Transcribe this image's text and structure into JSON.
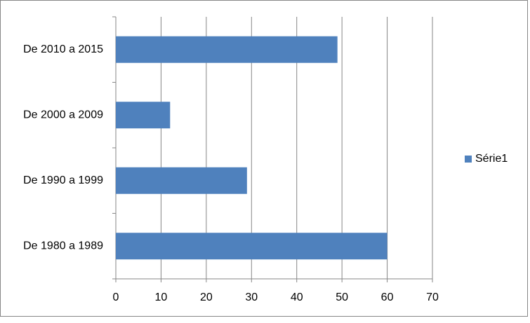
{
  "chart_data": {
    "type": "bar",
    "orientation": "horizontal",
    "categories": [
      "De 1980 a 1989",
      "De 1990 a 1999",
      "De 2000 a 2009",
      "De 2010 a 2015"
    ],
    "series": [
      {
        "name": "Série1",
        "color": "#4f81bd",
        "values": [
          60,
          29,
          12,
          49
        ]
      }
    ],
    "xlim": [
      0,
      70
    ],
    "xticks": [
      0,
      10,
      20,
      30,
      40,
      50,
      60,
      70
    ],
    "grid": true,
    "legend": "right"
  }
}
